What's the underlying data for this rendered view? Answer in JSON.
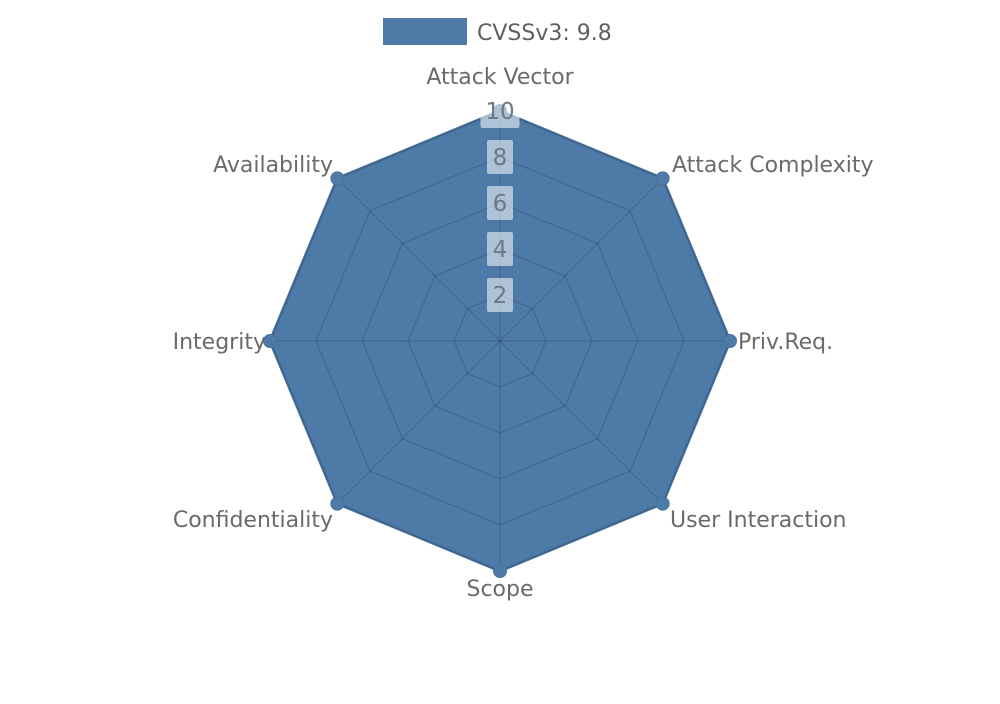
{
  "page": {
    "background": "#ffffff"
  },
  "legend": {
    "label": "CVSSv3: 9.8",
    "swatch_color": "#4d7aa7"
  },
  "chart_data": {
    "type": "radar",
    "title": "CVSSv3: 9.8",
    "categories": [
      "Attack Vector",
      "Attack Complexity",
      "Priv.Req.",
      "User Interaction",
      "Scope",
      "Confidentiality",
      "Integrity",
      "Availability"
    ],
    "series": [
      {
        "name": "CVSSv3: 9.8",
        "values": [
          10,
          10,
          10,
          10,
          10,
          10,
          10,
          10
        ]
      }
    ],
    "ticks": [
      2,
      4,
      6,
      8,
      10
    ],
    "rlim": [
      0,
      10
    ],
    "grid": true,
    "grid_shape": "polygon",
    "legend_position": "top-center",
    "colors": {
      "series_fill": "#4d7aa7",
      "series_edge": "#48739f",
      "grid_line": "rgba(0,0,0,0.18)",
      "axis_label": "#6a6a6a",
      "tick_label": "#6d7785",
      "tick_bg": "rgba(255,255,255,0.55)"
    }
  }
}
